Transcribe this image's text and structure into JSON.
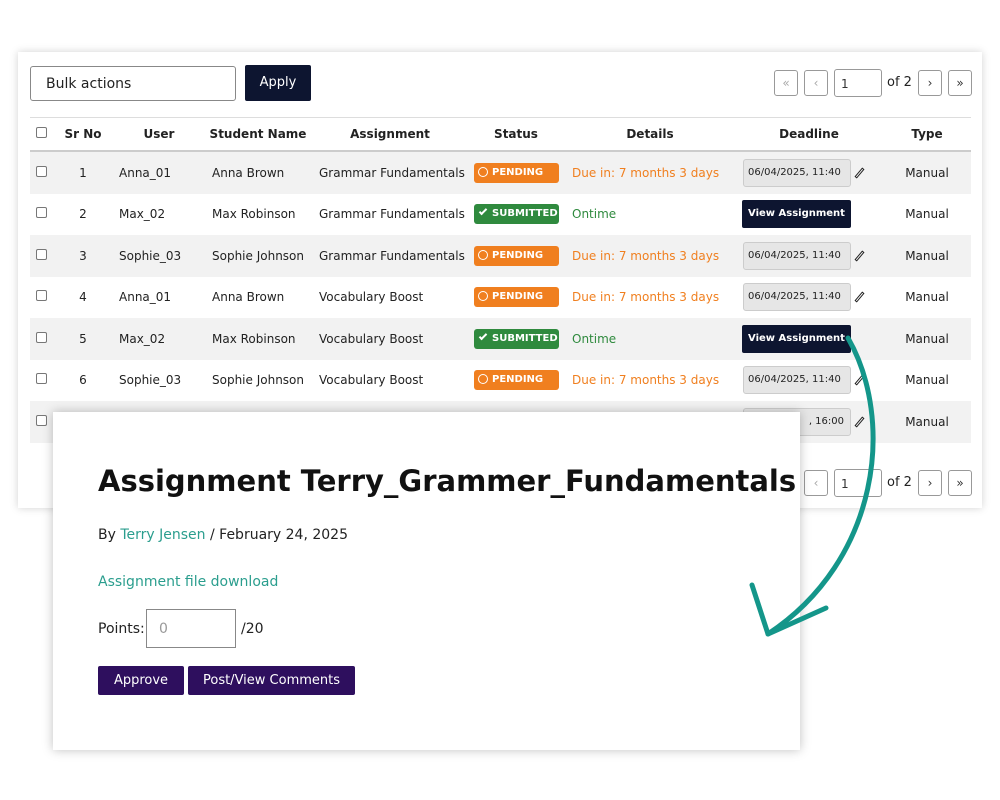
{
  "toolbar": {
    "bulk_select": "Bulk actions",
    "apply": "Apply"
  },
  "pagination_top": {
    "first": "«",
    "prev": "‹",
    "page": "1",
    "of": "of 2",
    "next": "›",
    "last": "»"
  },
  "pagination_bottom": {
    "prev": "‹",
    "page": "1",
    "of": "of 2",
    "next": "›",
    "last": "»"
  },
  "table": {
    "columns": [
      "Sr No",
      "User",
      "Student Name",
      "Assignment",
      "Status",
      "Details",
      "Deadline",
      "Type"
    ],
    "rows": [
      {
        "sr": "1",
        "user": "Anna_01",
        "student": "Anna Brown",
        "assignment": "Grammar Fundamentals",
        "status": "PENDING",
        "details": "Due in: 7 months 3 days",
        "deadline": "06/04/2025, 11:40",
        "type": "Manual"
      },
      {
        "sr": "2",
        "user": "Max_02",
        "student": "Max Robinson",
        "assignment": "Grammar Fundamentals",
        "status": "SUBMITTED",
        "details": "Ontime",
        "action": "View Assignment",
        "type": "Manual"
      },
      {
        "sr": "3",
        "user": "Sophie_03",
        "student": "Sophie Johnson",
        "assignment": "Grammar Fundamentals",
        "status": "PENDING",
        "details": "Due in: 7 months 3 days",
        "deadline": "06/04/2025, 11:40",
        "type": "Manual"
      },
      {
        "sr": "4",
        "user": "Anna_01",
        "student": "Anna Brown",
        "assignment": "Vocabulary Boost",
        "status": "PENDING",
        "details": "Due in: 7 months 3 days",
        "deadline": "06/04/2025, 11:40",
        "type": "Manual"
      },
      {
        "sr": "5",
        "user": "Max_02",
        "student": "Max Robinson",
        "assignment": "Vocabulary Boost",
        "status": "SUBMITTED",
        "details": "Ontime",
        "action": "View Assignment",
        "type": "Manual"
      },
      {
        "sr": "6",
        "user": "Sophie_03",
        "student": "Sophie Johnson",
        "assignment": "Vocabulary Boost",
        "status": "PENDING",
        "details": "Due in: 7 months 3 days",
        "deadline": "06/04/2025, 11:40",
        "type": "Manual"
      },
      {
        "deadline": ", 16:00",
        "type": "Manual"
      }
    ]
  },
  "popup": {
    "title": "Assignment Terry_Grammer_Fundamentals",
    "by": "By",
    "author": "Terry Jensen",
    "date": "/ February 24, 2025",
    "download": "Assignment file download",
    "points_label": "Points:",
    "points_placeholder": "0",
    "points_max": "/20",
    "approve": "Approve",
    "comments": "Post/View Comments"
  }
}
